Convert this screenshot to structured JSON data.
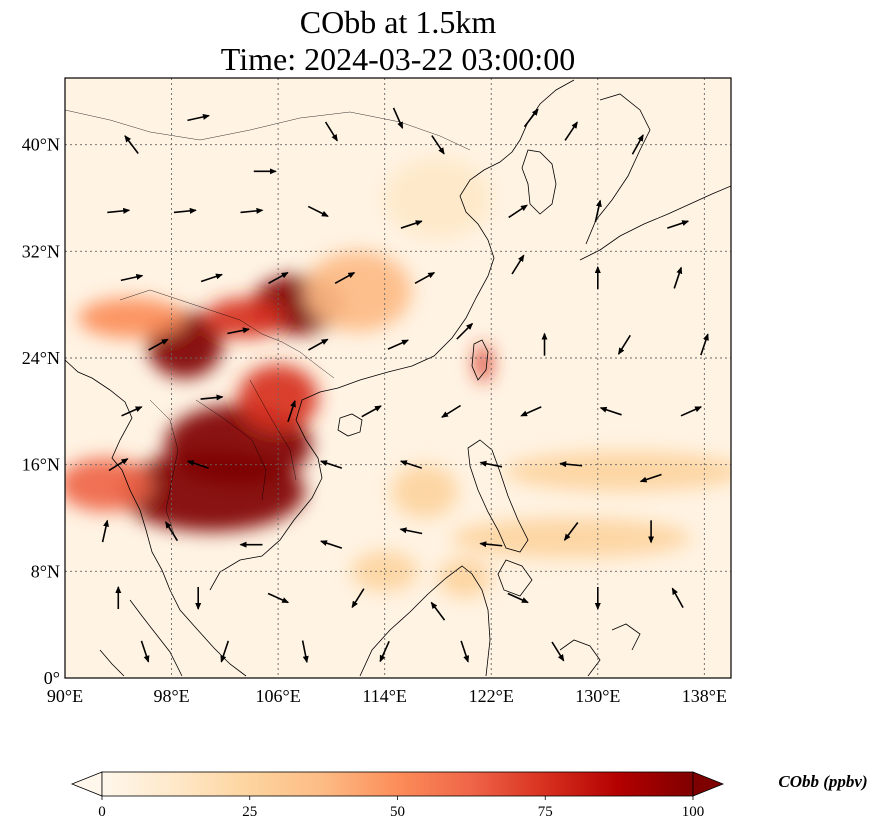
{
  "title": {
    "line1": "CObb at 1.5km",
    "line2": "Time: 2024-03-22 03:00:00"
  },
  "map": {
    "lon_range": [
      90,
      140
    ],
    "lat_range": [
      0,
      45
    ],
    "x_ticks": [
      {
        "value": 90,
        "label": "90°E"
      },
      {
        "value": 98,
        "label": "98°E"
      },
      {
        "value": 106,
        "label": "106°E"
      },
      {
        "value": 114,
        "label": "114°E"
      },
      {
        "value": 122,
        "label": "122°E"
      },
      {
        "value": 130,
        "label": "130°E"
      },
      {
        "value": 138,
        "label": "138°E"
      }
    ],
    "y_ticks": [
      {
        "value": 0,
        "label": "0°"
      },
      {
        "value": 8,
        "label": "8°N"
      },
      {
        "value": 16,
        "label": "16°N"
      },
      {
        "value": 24,
        "label": "24°N"
      },
      {
        "value": 32,
        "label": "32°N"
      },
      {
        "value": 40,
        "label": "40°N"
      }
    ],
    "gridlines": true,
    "field": "COBB concentration with wind vectors"
  },
  "colorbar": {
    "label": "CObb (ppbv)",
    "min": 0,
    "max": 100,
    "ticks": [
      {
        "value": 0,
        "label": "0"
      },
      {
        "value": 25,
        "label": "25"
      },
      {
        "value": 50,
        "label": "50"
      },
      {
        "value": 75,
        "label": "75"
      },
      {
        "value": 100,
        "label": "100"
      }
    ],
    "colormap": "OrRd",
    "colors": [
      "#fff7ec",
      "#fee8c8",
      "#fdd49e",
      "#fdbb84",
      "#fc8d59",
      "#ef6548",
      "#d7301f",
      "#b30000",
      "#7f0000"
    ],
    "extend": "both"
  },
  "plumes": [
    {
      "lon": 101.0,
      "lat": 14.0,
      "rx": 7.0,
      "ry": 3.0,
      "value": 100
    },
    {
      "lon": 103.0,
      "lat": 17.5,
      "rx": 5.5,
      "ry": 3.0,
      "value": 100
    },
    {
      "lon": 99.0,
      "lat": 25.0,
      "rx": 2.8,
      "ry": 2.5,
      "value": 100
    },
    {
      "lon": 107.5,
      "lat": 28.0,
      "rx": 3.5,
      "ry": 2.2,
      "value": 95
    },
    {
      "lon": 103.5,
      "lat": 27.0,
      "rx": 3.0,
      "ry": 1.5,
      "value": 80
    },
    {
      "lon": 106.0,
      "lat": 21.0,
      "rx": 3.0,
      "ry": 2.5,
      "value": 75
    },
    {
      "lon": 93.0,
      "lat": 14.5,
      "rx": 3.5,
      "ry": 2.0,
      "value": 60
    },
    {
      "lon": 112.0,
      "lat": 29.0,
      "rx": 4.0,
      "ry": 3.0,
      "value": 40
    },
    {
      "lon": 128.0,
      "lat": 10.5,
      "rx": 9.0,
      "ry": 1.5,
      "value": 30
    },
    {
      "lon": 132.0,
      "lat": 15.5,
      "rx": 9.0,
      "ry": 1.5,
      "value": 20
    },
    {
      "lon": 121.4,
      "lat": 23.6,
      "rx": 0.6,
      "ry": 1.4,
      "value": 80
    },
    {
      "lon": 120.0,
      "lat": 7.5,
      "rx": 2.0,
      "ry": 1.5,
      "value": 30
    },
    {
      "lon": 114.0,
      "lat": 8.0,
      "rx": 2.5,
      "ry": 1.5,
      "value": 20
    },
    {
      "lon": 117.0,
      "lat": 14.0,
      "rx": 2.5,
      "ry": 2.0,
      "value": 25
    },
    {
      "lon": 118.0,
      "lat": 36.0,
      "rx": 4.0,
      "ry": 3.0,
      "value": 12
    },
    {
      "lon": 95.0,
      "lat": 27.0,
      "rx": 4.0,
      "ry": 1.5,
      "value": 45
    }
  ],
  "wind_vectors": [
    {
      "lon": 95,
      "lat": 40,
      "u": -0.6,
      "v": 0.8
    },
    {
      "lon": 100,
      "lat": 42,
      "u": 0.9,
      "v": 0.2
    },
    {
      "lon": 105,
      "lat": 38,
      "u": 1.0,
      "v": 0.0
    },
    {
      "lon": 110,
      "lat": 41,
      "u": 0.5,
      "v": -0.8
    },
    {
      "lon": 115,
      "lat": 42,
      "u": 0.4,
      "v": -0.9
    },
    {
      "lon": 118,
      "lat": 40,
      "u": 0.6,
      "v": -0.9
    },
    {
      "lon": 125,
      "lat": 42,
      "u": 0.7,
      "v": 0.9
    },
    {
      "lon": 128,
      "lat": 41,
      "u": 0.6,
      "v": 0.9
    },
    {
      "lon": 133,
      "lat": 40,
      "u": 0.5,
      "v": 0.9
    },
    {
      "lon": 94,
      "lat": 35,
      "u": 1.0,
      "v": 0.1
    },
    {
      "lon": 99,
      "lat": 35,
      "u": 1.0,
      "v": 0.1
    },
    {
      "lon": 104,
      "lat": 35,
      "u": 1.0,
      "v": 0.1
    },
    {
      "lon": 109,
      "lat": 35,
      "u": 0.8,
      "v": -0.4
    },
    {
      "lon": 116,
      "lat": 34,
      "u": 0.9,
      "v": 0.3
    },
    {
      "lon": 124,
      "lat": 35,
      "u": 0.9,
      "v": 0.6
    },
    {
      "lon": 130,
      "lat": 35,
      "u": 0.2,
      "v": 0.9
    },
    {
      "lon": 136,
      "lat": 34,
      "u": 0.9,
      "v": 0.3
    },
    {
      "lon": 95,
      "lat": 30,
      "u": 0.9,
      "v": 0.2
    },
    {
      "lon": 101,
      "lat": 30,
      "u": 0.9,
      "v": 0.3
    },
    {
      "lon": 106,
      "lat": 30,
      "u": 0.9,
      "v": 0.5
    },
    {
      "lon": 111,
      "lat": 30,
      "u": 0.9,
      "v": 0.5
    },
    {
      "lon": 117,
      "lat": 30,
      "u": 0.9,
      "v": 0.5
    },
    {
      "lon": 124,
      "lat": 31,
      "u": 0.5,
      "v": 0.8
    },
    {
      "lon": 130,
      "lat": 30,
      "u": 0.0,
      "v": 1.0
    },
    {
      "lon": 136,
      "lat": 30,
      "u": 0.3,
      "v": 0.9
    },
    {
      "lon": 97,
      "lat": 25,
      "u": 0.9,
      "v": 0.5
    },
    {
      "lon": 103,
      "lat": 26,
      "u": 1.0,
      "v": 0.2
    },
    {
      "lon": 109,
      "lat": 25,
      "u": 0.9,
      "v": 0.5
    },
    {
      "lon": 115,
      "lat": 25,
      "u": 0.9,
      "v": 0.4
    },
    {
      "lon": 120,
      "lat": 26,
      "u": 0.7,
      "v": 0.7
    },
    {
      "lon": 126,
      "lat": 25,
      "u": 0.0,
      "v": 1.0
    },
    {
      "lon": 132,
      "lat": 25,
      "u": -0.5,
      "v": -0.8
    },
    {
      "lon": 138,
      "lat": 25,
      "u": 0.3,
      "v": 0.9
    },
    {
      "lon": 95,
      "lat": 20,
      "u": 0.9,
      "v": 0.4
    },
    {
      "lon": 101,
      "lat": 21,
      "u": 1.0,
      "v": 0.1
    },
    {
      "lon": 107,
      "lat": 20,
      "u": 0.3,
      "v": 0.9
    },
    {
      "lon": 113,
      "lat": 20,
      "u": 0.9,
      "v": 0.5
    },
    {
      "lon": 119,
      "lat": 20,
      "u": -0.8,
      "v": -0.5
    },
    {
      "lon": 125,
      "lat": 20,
      "u": -0.9,
      "v": -0.4
    },
    {
      "lon": 131,
      "lat": 20,
      "u": -0.9,
      "v": 0.3
    },
    {
      "lon": 137,
      "lat": 20,
      "u": 0.9,
      "v": 0.4
    },
    {
      "lon": 94,
      "lat": 16,
      "u": 0.8,
      "v": 0.5
    },
    {
      "lon": 100,
      "lat": 16,
      "u": -0.9,
      "v": 0.3
    },
    {
      "lon": 110,
      "lat": 16,
      "u": -0.9,
      "v": 0.3
    },
    {
      "lon": 116,
      "lat": 16,
      "u": -0.9,
      "v": 0.3
    },
    {
      "lon": 122,
      "lat": 16,
      "u": -1.0,
      "v": 0.2
    },
    {
      "lon": 128,
      "lat": 16,
      "u": -1.0,
      "v": 0.1
    },
    {
      "lon": 134,
      "lat": 15,
      "u": -0.9,
      "v": -0.3
    },
    {
      "lon": 93,
      "lat": 11,
      "u": 0.2,
      "v": 0.9
    },
    {
      "lon": 98,
      "lat": 11,
      "u": -0.5,
      "v": 0.8
    },
    {
      "lon": 104,
      "lat": 10,
      "u": -1.0,
      "v": 0.0
    },
    {
      "lon": 110,
      "lat": 10,
      "u": -0.9,
      "v": 0.3
    },
    {
      "lon": 116,
      "lat": 11,
      "u": -1.0,
      "v": 0.2
    },
    {
      "lon": 122,
      "lat": 10,
      "u": -1.0,
      "v": 0.1
    },
    {
      "lon": 128,
      "lat": 11,
      "u": -0.6,
      "v": -0.8
    },
    {
      "lon": 134,
      "lat": 11,
      "u": 0.0,
      "v": -1.0
    },
    {
      "lon": 94,
      "lat": 6,
      "u": 0.0,
      "v": 1.0
    },
    {
      "lon": 100,
      "lat": 6,
      "u": 0.0,
      "v": -1.0
    },
    {
      "lon": 106,
      "lat": 6,
      "u": 0.9,
      "v": -0.4
    },
    {
      "lon": 112,
      "lat": 6,
      "u": -0.5,
      "v": -0.8
    },
    {
      "lon": 118,
      "lat": 5,
      "u": -0.6,
      "v": 0.8
    },
    {
      "lon": 124,
      "lat": 6,
      "u": 0.9,
      "v": -0.4
    },
    {
      "lon": 130,
      "lat": 6,
      "u": 0.0,
      "v": -1.0
    },
    {
      "lon": 136,
      "lat": 6,
      "u": -0.5,
      "v": 0.9
    },
    {
      "lon": 96,
      "lat": 2,
      "u": 0.3,
      "v": -0.9
    },
    {
      "lon": 102,
      "lat": 2,
      "u": -0.3,
      "v": -0.9
    },
    {
      "lon": 108,
      "lat": 2,
      "u": 0.2,
      "v": -1.0
    },
    {
      "lon": 114,
      "lat": 2,
      "u": -0.4,
      "v": -0.9
    },
    {
      "lon": 120,
      "lat": 2,
      "u": 0.3,
      "v": -0.9
    },
    {
      "lon": 127,
      "lat": 2,
      "u": 0.5,
      "v": -0.8
    }
  ]
}
